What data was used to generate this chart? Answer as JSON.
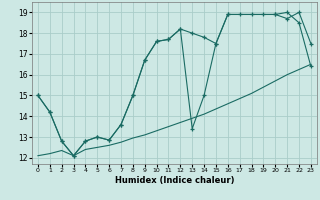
{
  "xlabel": "Humidex (Indice chaleur)",
  "bg_color": "#cde8e4",
  "grid_color": "#aacdc9",
  "line_color": "#1a6b63",
  "xlim": [
    -0.5,
    23.5
  ],
  "ylim": [
    11.7,
    19.5
  ],
  "xticks": [
    0,
    1,
    2,
    3,
    4,
    5,
    6,
    7,
    8,
    9,
    10,
    11,
    12,
    13,
    14,
    15,
    16,
    17,
    18,
    19,
    20,
    21,
    22,
    23
  ],
  "yticks": [
    12,
    13,
    14,
    15,
    16,
    17,
    18,
    19
  ],
  "line1_x": [
    0,
    1,
    2,
    3,
    4,
    5,
    6,
    7,
    8,
    9,
    10,
    11,
    12,
    13,
    14,
    15,
    16,
    17,
    18,
    19,
    20,
    21,
    22,
    23
  ],
  "line1_y": [
    15.0,
    14.2,
    12.8,
    12.1,
    12.8,
    13.0,
    12.85,
    13.6,
    15.0,
    16.7,
    17.6,
    17.7,
    18.2,
    18.0,
    17.8,
    17.5,
    18.9,
    18.9,
    18.9,
    18.9,
    18.9,
    19.0,
    18.5,
    16.4
  ],
  "line2_x": [
    0,
    1,
    2,
    3,
    4,
    5,
    6,
    7,
    8,
    9,
    10,
    11,
    12,
    13,
    14,
    15,
    16,
    20,
    21,
    22,
    23
  ],
  "line2_y": [
    15.0,
    14.2,
    12.8,
    12.1,
    12.8,
    13.0,
    12.85,
    13.6,
    15.0,
    16.7,
    17.6,
    17.7,
    18.2,
    13.4,
    15.0,
    17.5,
    18.9,
    18.9,
    18.7,
    19.0,
    17.5
  ],
  "line3_x": [
    0,
    1,
    2,
    3,
    4,
    5,
    6,
    7,
    8,
    9,
    10,
    11,
    12,
    13,
    14,
    15,
    16,
    17,
    18,
    19,
    20,
    21,
    22,
    23
  ],
  "line3_y": [
    12.1,
    12.2,
    12.35,
    12.1,
    12.4,
    12.5,
    12.6,
    12.75,
    12.95,
    13.1,
    13.3,
    13.5,
    13.7,
    13.9,
    14.1,
    14.35,
    14.6,
    14.85,
    15.1,
    15.4,
    15.7,
    16.0,
    16.25,
    16.5
  ]
}
